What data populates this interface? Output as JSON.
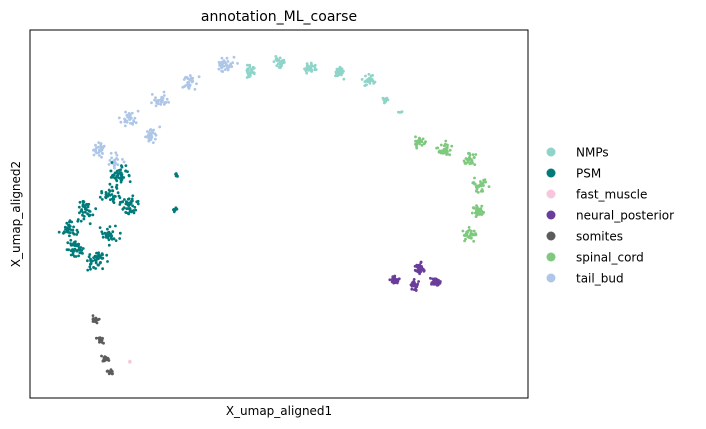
{
  "chart_data": {
    "type": "scatter",
    "title": "annotation_ML_coarse",
    "xlabel": "X_umap_aligned1",
    "ylabel": "X_umap_aligned2",
    "grid": false,
    "legend_position": "right",
    "x_ticks": [],
    "y_ticks": [],
    "legend": [
      {
        "name": "NMPs",
        "color": "#8fd4c8"
      },
      {
        "name": "PSM",
        "color": "#007b7a"
      },
      {
        "name": "fast_muscle",
        "color": "#f7c6dc"
      },
      {
        "name": "neural_posterior",
        "color": "#6a3d9a"
      },
      {
        "name": "somites",
        "color": "#5c5c5c"
      },
      {
        "name": "spinal_cord",
        "color": "#7fc97f"
      },
      {
        "name": "tail_bud",
        "color": "#aec7e8"
      }
    ]
  }
}
